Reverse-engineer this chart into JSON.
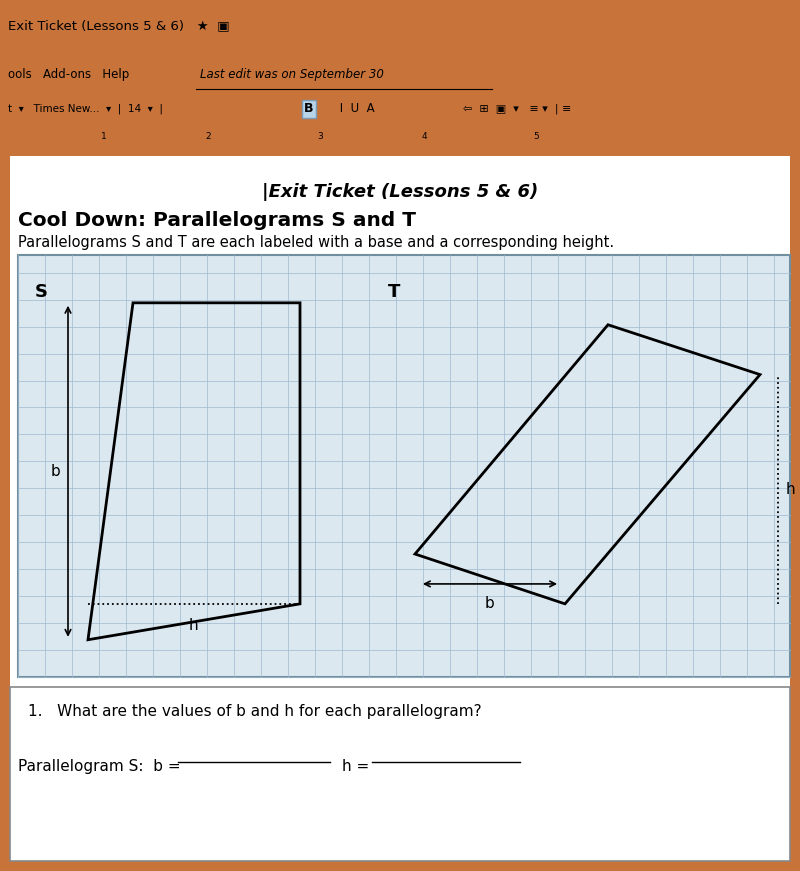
{
  "toolbar_bg": "#c8733a",
  "toolbar2_bg": "#d4874e",
  "page_bg": "#c8733a",
  "grid_color": "#a0b8d0",
  "grid_bg": "#dce8f0",
  "page_title": "|Exit Ticket (Lessons 5 & 6)",
  "section_title": "Cool Down: Parallelograms S and T",
  "subtitle": "Parallelograms S and T are each labeled with a base and a corresponding height.",
  "question": "1.   What are the values of b and h for each parallelogram?",
  "answer_label": "Parallelogram S:  b = ",
  "h_label": "h = "
}
